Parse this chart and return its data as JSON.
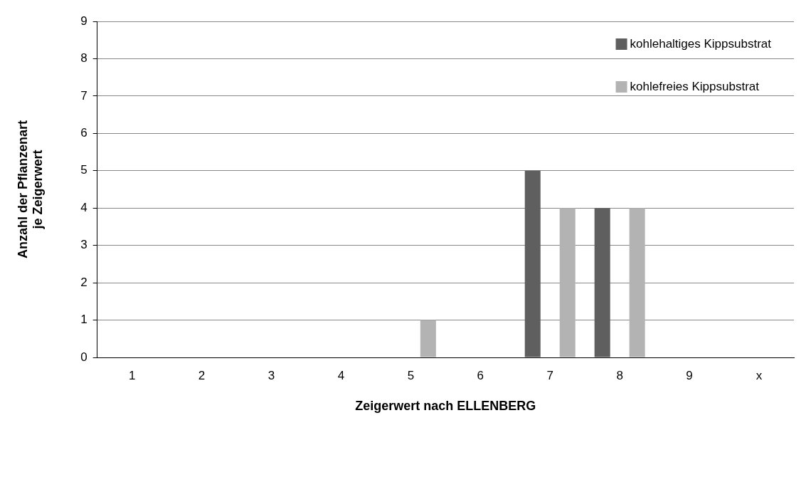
{
  "chart_data": {
    "type": "bar",
    "xlabel": "Zeigerwert nach ELLENBERG",
    "ylabel": "Anzahl der Pflanzenart\nje Zeigerwert",
    "categories": [
      "1",
      "2",
      "3",
      "4",
      "5",
      "6",
      "7",
      "8",
      "9",
      "x"
    ],
    "series": [
      {
        "name": "kohlehaltiges Kippsubstrat",
        "color": "#5f5f5f",
        "values": [
          0,
          0,
          0,
          0,
          0,
          0,
          5,
          4,
          0,
          0
        ]
      },
      {
        "name": "kohlefreies Kippsubstrat",
        "color": "#b3b3b3",
        "values": [
          0,
          0,
          0,
          0,
          1,
          0,
          4,
          4,
          0,
          0
        ]
      }
    ],
    "ylim": [
      0,
      9
    ],
    "yticks": [
      0,
      1,
      2,
      3,
      4,
      5,
      6,
      7,
      8,
      9
    ],
    "grid": "y",
    "legend": "top right"
  }
}
